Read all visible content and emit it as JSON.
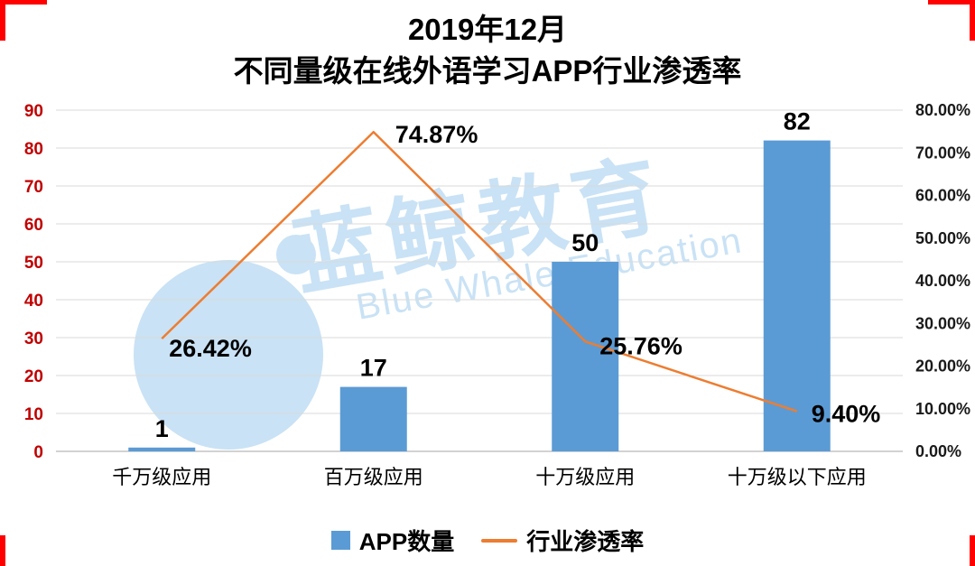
{
  "watermark": {
    "cn": "蓝鲸教育",
    "en": "Blue Whale Education"
  },
  "colors": {
    "bar": "#5B9BD5",
    "line": "#ED7D31",
    "left_axis_text": "#C00000",
    "right_axis_text": "#1A1A1A",
    "grid": "#D9D9D9",
    "baseline": "#A6A6A6",
    "frame": "#FF0000",
    "watermark": "#C9E2F5"
  },
  "chart_data": {
    "type": "combo",
    "title_lines": [
      "2019年12月",
      "不同量级在线外语学习APP行业渗透率"
    ],
    "categories": [
      "千万级应用",
      "百万级应用",
      "十万级应用",
      "十万级以下应用"
    ],
    "series": [
      {
        "name": "APP数量",
        "type": "bar",
        "axis": "left",
        "color": "#5B9BD5",
        "values": [
          1,
          17,
          50,
          82
        ],
        "labels": [
          "1",
          "17",
          "50",
          "82"
        ]
      },
      {
        "name": "行业渗透率",
        "type": "line",
        "axis": "right",
        "color": "#ED7D31",
        "values": [
          26.42,
          74.87,
          25.76,
          9.4
        ],
        "labels": [
          "26.42%",
          "74.87%",
          "25.76%",
          "9.40%"
        ]
      }
    ],
    "left_axis": {
      "min": 0,
      "max": 90,
      "step": 10,
      "ticks": [
        "90",
        "80",
        "70",
        "60",
        "50",
        "40",
        "30",
        "20",
        "10",
        "0"
      ]
    },
    "right_axis": {
      "min": 0,
      "max": 80,
      "step": 10,
      "ticks": [
        "80.00%",
        "70.00%",
        "60.00%",
        "50.00%",
        "40.00%",
        "30.00%",
        "20.00%",
        "10.00%",
        "0.00%"
      ]
    },
    "grid": true,
    "legend_position": "bottom"
  }
}
